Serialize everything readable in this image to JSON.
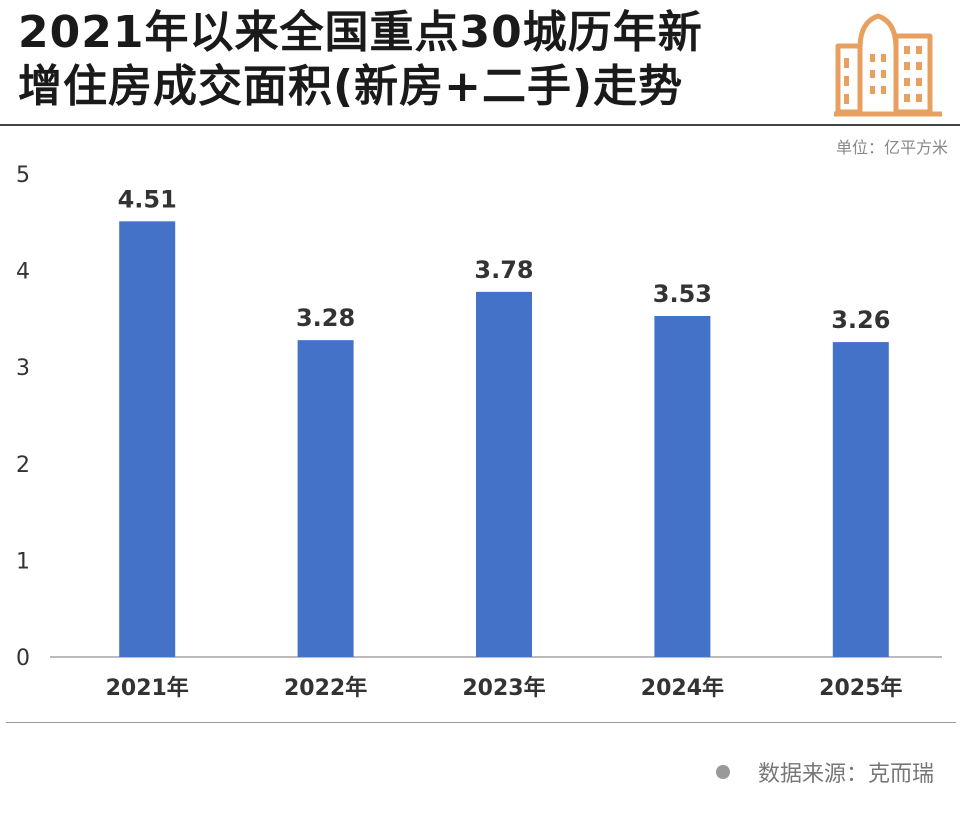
{
  "header": {
    "title_line1": "2021年以来全国重点30城历年新",
    "title_line2": "增住房成交面积(新房+二手)走势",
    "unit": "单位：亿平方米",
    "logo_icon": "buildings-icon"
  },
  "footer": {
    "source": "数据来源：克而瑞"
  },
  "colors": {
    "bar": "#4472C9",
    "logo": "#E8A060",
    "axis": "#bbbbbb",
    "text": "#333333"
  },
  "chart_data": {
    "type": "bar",
    "title": "2021年以来全国重点30城历年新增住房成交面积(新房+二手)走势",
    "categories": [
      "2021年",
      "2022年",
      "2023年",
      "2024年",
      "2025年"
    ],
    "values": [
      4.51,
      3.28,
      3.78,
      3.53,
      3.26
    ],
    "value_labels": [
      "4.51",
      "3.28",
      "3.78",
      "3.53",
      "3.26"
    ],
    "yticks": [
      "0",
      "1",
      "2",
      "3",
      "4",
      "5"
    ],
    "ylim": [
      0,
      5
    ],
    "xlabel": "",
    "ylabel": "亿平方米",
    "grid": false
  }
}
